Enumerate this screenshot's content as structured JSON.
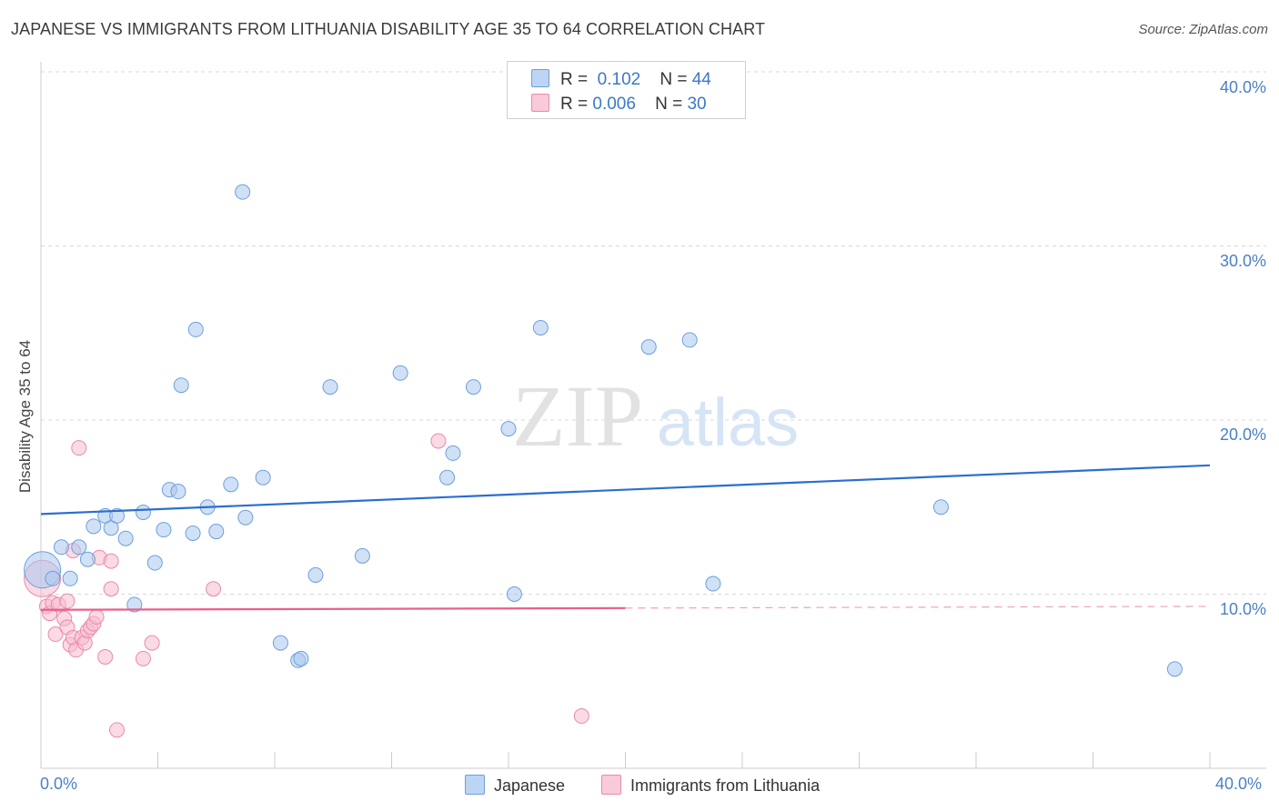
{
  "chart_title": "JAPANESE VS IMMIGRANTS FROM LITHUANIA DISABILITY AGE 35 TO 64 CORRELATION CHART",
  "source": "Source: ZipAtlas.com",
  "watermark": {
    "zip": "ZIP",
    "atlas": "atlas"
  },
  "colors": {
    "japanese_fill": "#a9c8ef",
    "japanese_stroke": "#6d9fdc",
    "japanese_line": "#2a6fd0",
    "lithuania_fill": "#f6bcd0",
    "lithuania_stroke": "#e98aab",
    "lithuania_line": "#e8608a",
    "grid": "#d8d8d8",
    "axis_text": "#4a80c8"
  },
  "legend": {
    "r_label": "R =",
    "n_label": "N =",
    "rows": [
      {
        "r": "0.102",
        "n": "44"
      },
      {
        "r": "0.006",
        "n": "30"
      }
    ]
  },
  "bottom_legend": {
    "japanese": "Japanese",
    "lithuania": "Immigrants from Lithuania"
  },
  "chart_data": {
    "type": "scatter",
    "title": "JAPANESE VS IMMIGRANTS FROM LITHUANIA DISABILITY AGE 35 TO 64 CORRELATION CHART",
    "xlabel": "",
    "ylabel": "Disability Age 35 to 64",
    "xlim": [
      0,
      40
    ],
    "ylim": [
      0,
      40
    ],
    "x_tick_labels": [
      "0.0%",
      "40.0%"
    ],
    "y_tick_labels": [
      "10.0%",
      "20.0%",
      "30.0%",
      "40.0%"
    ],
    "y_ticks": [
      10,
      20,
      30,
      40
    ],
    "grid": true,
    "series": [
      {
        "name": "Japanese",
        "r": 0.102,
        "n": 44,
        "trend": {
          "x0": 0,
          "y0": 14.6,
          "x1": 40,
          "y1": 17.4
        },
        "points": [
          {
            "x": 0.05,
            "y": 11.4,
            "big": true
          },
          {
            "x": 0.4,
            "y": 10.9
          },
          {
            "x": 0.7,
            "y": 12.7
          },
          {
            "x": 1.0,
            "y": 10.9
          },
          {
            "x": 1.3,
            "y": 12.7
          },
          {
            "x": 1.6,
            "y": 12.0
          },
          {
            "x": 1.8,
            "y": 13.9
          },
          {
            "x": 2.2,
            "y": 14.5
          },
          {
            "x": 2.4,
            "y": 13.8
          },
          {
            "x": 2.6,
            "y": 14.5
          },
          {
            "x": 2.9,
            "y": 13.2
          },
          {
            "x": 3.2,
            "y": 9.4
          },
          {
            "x": 3.5,
            "y": 14.7
          },
          {
            "x": 3.9,
            "y": 11.8
          },
          {
            "x": 4.2,
            "y": 13.7
          },
          {
            "x": 4.4,
            "y": 16.0
          },
          {
            "x": 4.7,
            "y": 15.9
          },
          {
            "x": 4.8,
            "y": 22.0
          },
          {
            "x": 5.2,
            "y": 13.5
          },
          {
            "x": 5.3,
            "y": 25.2
          },
          {
            "x": 5.7,
            "y": 15.0
          },
          {
            "x": 6.0,
            "y": 13.6
          },
          {
            "x": 6.5,
            "y": 16.3
          },
          {
            "x": 6.9,
            "y": 33.1
          },
          {
            "x": 7.0,
            "y": 14.4
          },
          {
            "x": 7.6,
            "y": 16.7
          },
          {
            "x": 8.2,
            "y": 7.2
          },
          {
            "x": 8.8,
            "y": 6.2
          },
          {
            "x": 8.9,
            "y": 6.3
          },
          {
            "x": 9.4,
            "y": 11.1
          },
          {
            "x": 9.9,
            "y": 21.9
          },
          {
            "x": 11.0,
            "y": 12.2
          },
          {
            "x": 12.3,
            "y": 22.7
          },
          {
            "x": 13.9,
            "y": 16.7
          },
          {
            "x": 14.1,
            "y": 18.1
          },
          {
            "x": 14.8,
            "y": 21.9
          },
          {
            "x": 16.0,
            "y": 19.5
          },
          {
            "x": 16.2,
            "y": 10.0
          },
          {
            "x": 17.1,
            "y": 25.3
          },
          {
            "x": 20.8,
            "y": 24.2
          },
          {
            "x": 22.2,
            "y": 24.6
          },
          {
            "x": 23.0,
            "y": 10.6
          },
          {
            "x": 30.8,
            "y": 15.0
          },
          {
            "x": 38.8,
            "y": 5.7
          }
        ]
      },
      {
        "name": "Immigrants from Lithuania",
        "r": 0.006,
        "n": 30,
        "trend": {
          "x0": 0,
          "y0": 9.1,
          "x1": 20.0,
          "y1": 9.2,
          "dashed_to": 40,
          "dashed_y": 9.3
        },
        "points": [
          {
            "x": 0.05,
            "y": 10.9,
            "big": true
          },
          {
            "x": 0.2,
            "y": 9.3
          },
          {
            "x": 0.3,
            "y": 8.9
          },
          {
            "x": 0.4,
            "y": 9.5
          },
          {
            "x": 0.5,
            "y": 7.7
          },
          {
            "x": 0.6,
            "y": 9.4
          },
          {
            "x": 0.8,
            "y": 8.6
          },
          {
            "x": 0.9,
            "y": 9.6
          },
          {
            "x": 0.9,
            "y": 8.1
          },
          {
            "x": 1.0,
            "y": 7.1
          },
          {
            "x": 1.1,
            "y": 7.5
          },
          {
            "x": 1.1,
            "y": 12.5
          },
          {
            "x": 1.2,
            "y": 6.8
          },
          {
            "x": 1.3,
            "y": 18.4
          },
          {
            "x": 1.4,
            "y": 7.5
          },
          {
            "x": 1.5,
            "y": 7.2
          },
          {
            "x": 1.6,
            "y": 7.9
          },
          {
            "x": 1.7,
            "y": 8.1
          },
          {
            "x": 1.8,
            "y": 8.3
          },
          {
            "x": 1.9,
            "y": 8.7
          },
          {
            "x": 2.0,
            "y": 12.1
          },
          {
            "x": 2.2,
            "y": 6.4
          },
          {
            "x": 2.4,
            "y": 10.3
          },
          {
            "x": 2.4,
            "y": 11.9
          },
          {
            "x": 2.6,
            "y": 2.2
          },
          {
            "x": 3.5,
            "y": 6.3
          },
          {
            "x": 3.8,
            "y": 7.2
          },
          {
            "x": 5.9,
            "y": 10.3
          },
          {
            "x": 13.6,
            "y": 18.8
          },
          {
            "x": 18.5,
            "y": 3.0
          }
        ]
      }
    ]
  }
}
